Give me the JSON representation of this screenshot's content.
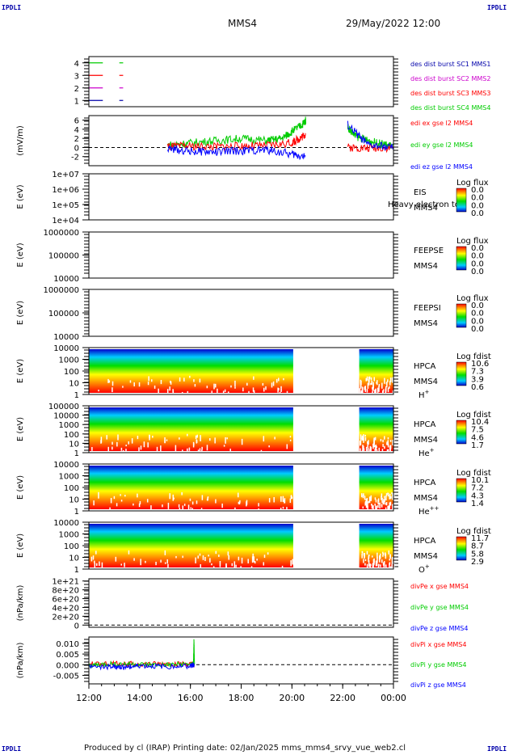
{
  "header": {
    "corner_label": "IPDLI",
    "spacecraft": "MMS4",
    "datetime": "29/May/2022 12:00"
  },
  "footer": {
    "credits": "Produced by cl (IRAP)   Printing date: 02/Jan/2025   mms_mms4_srvy_vue_web2.cl"
  },
  "time_axis": {
    "ticks": [
      "12:00",
      "14:00",
      "16:00",
      "18:00",
      "20:00",
      "22:00",
      "00:00"
    ],
    "range_hours": [
      12,
      24
    ]
  },
  "colors": {
    "red": "#ff0000",
    "green": "#00cc00",
    "blue": "#0000ff",
    "magenta": "#cc00cc",
    "dark_blue": "#0000aa"
  },
  "chart_data": [
    {
      "type": "line",
      "panel": "burst",
      "yticks": [
        "1",
        "2",
        "3",
        "4"
      ],
      "ylim": [
        0.5,
        4.5
      ],
      "legend": [
        {
          "name": "des dist burst SC1 MMS1",
          "color": "#0000aa"
        },
        {
          "name": "des dist burst SC2 MMS2",
          "color": "#cc00cc"
        },
        {
          "name": "des dist burst SC3 MMS3",
          "color": "#ff0000"
        },
        {
          "name": "des dist burst SC4 MMS4",
          "color": "#00cc00"
        }
      ],
      "series": [
        {
          "level": 4,
          "color": "#00cc00",
          "segments": [
            [
              12.0,
              12.55
            ],
            [
              13.2,
              13.35
            ]
          ]
        },
        {
          "level": 3,
          "color": "#ff0000",
          "segments": [
            [
              12.0,
              12.55
            ],
            [
              13.2,
              13.35
            ]
          ]
        },
        {
          "level": 2,
          "color": "#cc00cc",
          "segments": [
            [
              12.0,
              12.55
            ],
            [
              13.2,
              13.35
            ]
          ]
        },
        {
          "level": 1,
          "color": "#0000aa",
          "segments": [
            [
              12.0,
              12.55
            ],
            [
              13.2,
              13.35
            ]
          ]
        }
      ]
    },
    {
      "type": "line",
      "panel": "edi",
      "ylabel": "(mV/m)",
      "yticks": [
        "-2",
        "0",
        "2",
        "4",
        "6"
      ],
      "ylim": [
        -4,
        7
      ],
      "legend": [
        {
          "name": "edi ex gse l2 MMS4",
          "color": "#ff0000"
        },
        {
          "name": "edi ey gse l2 MMS4",
          "color": "#00cc00"
        },
        {
          "name": "edi ez gse l2 MMS4",
          "color": "#0000ff"
        }
      ],
      "series": [
        {
          "name": "edi ey gse l2 MMS4",
          "color": "#00cc00",
          "x": [
            15.1,
            16.0,
            17.0,
            18.0,
            19.0,
            19.6,
            20.0,
            20.4,
            20.55,
            22.2,
            22.5,
            23.0,
            23.5,
            24.0
          ],
          "y": [
            0.5,
            1.0,
            1.5,
            2.0,
            1.5,
            2.0,
            3.5,
            5.0,
            6.0,
            4.5,
            2.5,
            1.5,
            0.8,
            0.3
          ]
        },
        {
          "name": "edi ex gse l2 MMS4",
          "color": "#ff0000",
          "x": [
            15.1,
            16.0,
            17.0,
            18.0,
            19.0,
            20.0,
            20.3,
            20.55,
            22.2,
            23.0,
            24.0
          ],
          "y": [
            0.2,
            0.3,
            0.2,
            0.3,
            0.4,
            1.0,
            2.0,
            3.0,
            0.0,
            -0.1,
            0.0
          ]
        },
        {
          "name": "edi ez gse l2 MMS4",
          "color": "#0000ff",
          "x": [
            15.1,
            16.0,
            17.0,
            18.0,
            19.0,
            20.0,
            20.55,
            22.2,
            23.0,
            24.0
          ],
          "y": [
            -0.3,
            -0.8,
            -1.0,
            -0.7,
            -0.5,
            -1.5,
            -2.0,
            5.0,
            0.5,
            0.0
          ]
        }
      ]
    },
    {
      "type": "heatmap",
      "panel": "eis",
      "ylabel": "E (eV)",
      "yticks": [
        "1e+04",
        "1e+05",
        "1e+06",
        "1e+07"
      ],
      "labels": [
        "EIS",
        "MMS4"
      ],
      "overlay_text": "Heavy electron to",
      "colorbar_title": "Log flux",
      "colorbar_ticks": [
        "0.0",
        "0.0",
        "0.0",
        "0.0"
      ],
      "data_blocks": []
    },
    {
      "type": "heatmap",
      "panel": "feepse",
      "ylabel": "E (eV)",
      "yticks": [
        "10000",
        "100000",
        "1000000"
      ],
      "labels": [
        "FEEPSE",
        "MMS4"
      ],
      "colorbar_title": "Log flux",
      "colorbar_ticks": [
        "0.0",
        "0.0",
        "0.0",
        "0.0"
      ],
      "data_blocks": []
    },
    {
      "type": "heatmap",
      "panel": "feepsi",
      "ylabel": "E (eV)",
      "yticks": [
        "10000",
        "100000",
        "1000000"
      ],
      "labels": [
        "FEEPSI",
        "MMS4"
      ],
      "colorbar_title": "Log flux",
      "colorbar_ticks": [
        "0.0",
        "0.0",
        "0.0",
        "0.0"
      ],
      "data_blocks": []
    },
    {
      "type": "heatmap",
      "panel": "hpca_h",
      "ylabel": "E (eV)",
      "yticks": [
        "1",
        "10",
        "100",
        "1000",
        "10000"
      ],
      "labels": [
        "HPCA",
        "MMS4"
      ],
      "species": "H",
      "species_sup": "+",
      "colorbar_title": "Log fdist",
      "colorbar_ticks": [
        "10.6",
        "7.3",
        "3.9",
        "0.6"
      ],
      "data_blocks": [
        [
          12.0,
          20.05
        ],
        [
          22.65,
          24.0
        ]
      ]
    },
    {
      "type": "heatmap",
      "panel": "hpca_he",
      "ylabel": "E (eV)",
      "yticks": [
        "1",
        "10",
        "100",
        "1000",
        "10000",
        "100000"
      ],
      "labels": [
        "HPCA",
        "MMS4"
      ],
      "species": "He",
      "species_sup": "+",
      "colorbar_title": "Log fdist",
      "colorbar_ticks": [
        "10.4",
        "7.5",
        "4.6",
        "1.7"
      ],
      "data_blocks": [
        [
          12.0,
          20.05
        ],
        [
          22.65,
          24.0
        ]
      ]
    },
    {
      "type": "heatmap",
      "panel": "hpca_hepp",
      "ylabel": "E (eV)",
      "yticks": [
        "1",
        "10",
        "100",
        "1000",
        "10000"
      ],
      "labels": [
        "HPCA",
        "MMS4"
      ],
      "species": "He",
      "species_sup": "++",
      "colorbar_title": "Log fdist",
      "colorbar_ticks": [
        "10.1",
        "7.2",
        "4.3",
        "1.4"
      ],
      "data_blocks": [
        [
          12.0,
          20.05
        ],
        [
          22.65,
          24.0
        ]
      ]
    },
    {
      "type": "heatmap",
      "panel": "hpca_o",
      "ylabel": "E (eV)",
      "yticks": [
        "1",
        "10",
        "100",
        "1000",
        "10000"
      ],
      "labels": [
        "HPCA",
        "MMS4"
      ],
      "species": "O",
      "species_sup": "+",
      "colorbar_title": "Log fdist",
      "colorbar_ticks": [
        "11.7",
        "8.7",
        "5.8",
        "2.9"
      ],
      "data_blocks": [
        [
          12.0,
          20.05
        ],
        [
          22.65,
          24.0
        ]
      ]
    },
    {
      "type": "line",
      "panel": "divpe",
      "ylabel": "(nPa/km)",
      "yticks": [
        "0",
        "2e+20",
        "4e+20",
        "6e+20",
        "8e+20",
        "1e+21"
      ],
      "ylim": [
        -5e+19,
        1.05e+21
      ],
      "legend": [
        {
          "name": "divPe x gse MMS4",
          "color": "#ff0000"
        },
        {
          "name": "divPe y gse MMS4",
          "color": "#00cc00"
        },
        {
          "name": "divPe z gse MMS4",
          "color": "#0000ff"
        }
      ],
      "series": []
    },
    {
      "type": "line",
      "panel": "divpi",
      "ylabel": "(nPa/km)",
      "yticks": [
        "-0.005",
        "0.000",
        "0.005",
        "0.010"
      ],
      "ylim": [
        -0.009,
        0.013
      ],
      "legend": [
        {
          "name": "divPi x gse MMS4",
          "color": "#ff0000"
        },
        {
          "name": "divPi y gse MMS4",
          "color": "#00cc00"
        },
        {
          "name": "divPi z gse MMS4",
          "color": "#0000ff"
        }
      ],
      "series": [
        {
          "name": "divPi x gse MMS4",
          "color": "#ff0000",
          "x": [
            12.0,
            13.0,
            14.0,
            15.0,
            16.0,
            16.15
          ],
          "y": [
            0.0003,
            0.0006,
            0.0002,
            0.0004,
            0.0003,
            0.0
          ]
        },
        {
          "name": "divPi y gse MMS4",
          "color": "#00cc00",
          "x": [
            12.0,
            13.0,
            14.0,
            15.0,
            16.0,
            16.12,
            16.14,
            16.16
          ],
          "y": [
            -0.0003,
            0.0004,
            0.0001,
            -0.0002,
            0.0002,
            0.0,
            0.012,
            0.0
          ]
        },
        {
          "name": "divPi z gse MMS4",
          "color": "#0000ff",
          "x": [
            12.0,
            13.0,
            13.4,
            14.0,
            15.0,
            16.0,
            16.15
          ],
          "y": [
            -0.0008,
            -0.001,
            -0.0012,
            -0.0005,
            -0.0009,
            -0.0006,
            0.0
          ]
        }
      ]
    }
  ]
}
